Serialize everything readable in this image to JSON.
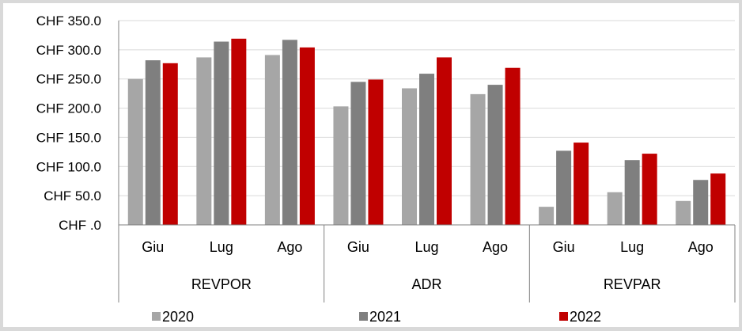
{
  "chart_data": {
    "type": "bar",
    "title": "",
    "xlabel": "",
    "ylabel": "",
    "ylim": [
      0,
      350
    ],
    "yticks": [
      0,
      50,
      100,
      150,
      200,
      250,
      300,
      350
    ],
    "ytick_labels": [
      "CHF .0",
      "CHF 50.0",
      "CHF 100.0",
      "CHF 150.0",
      "CHF 200.0",
      "CHF 250.0",
      "CHF 300.0",
      "CHF 350.0"
    ],
    "grid": true,
    "legend_position": "bottom",
    "groups": [
      {
        "name": "REVPOR",
        "categories": [
          "Giu",
          "Lug",
          "Ago"
        ]
      },
      {
        "name": "ADR",
        "categories": [
          "Giu",
          "Lug",
          "Ago"
        ]
      },
      {
        "name": "REVPAR",
        "categories": [
          "Giu",
          "Lug",
          "Ago"
        ]
      }
    ],
    "series": [
      {
        "name": "2020",
        "color": "#a6a6a6",
        "values": [
          250,
          287,
          291,
          203,
          234,
          224,
          31,
          56,
          41
        ]
      },
      {
        "name": "2021",
        "color": "#7f7f7f",
        "values": [
          282,
          314,
          317,
          245,
          259,
          240,
          127,
          111,
          77
        ]
      },
      {
        "name": "2022",
        "color": "#c00000",
        "values": [
          277,
          319,
          304,
          249,
          287,
          269,
          141,
          122,
          88
        ]
      }
    ]
  }
}
